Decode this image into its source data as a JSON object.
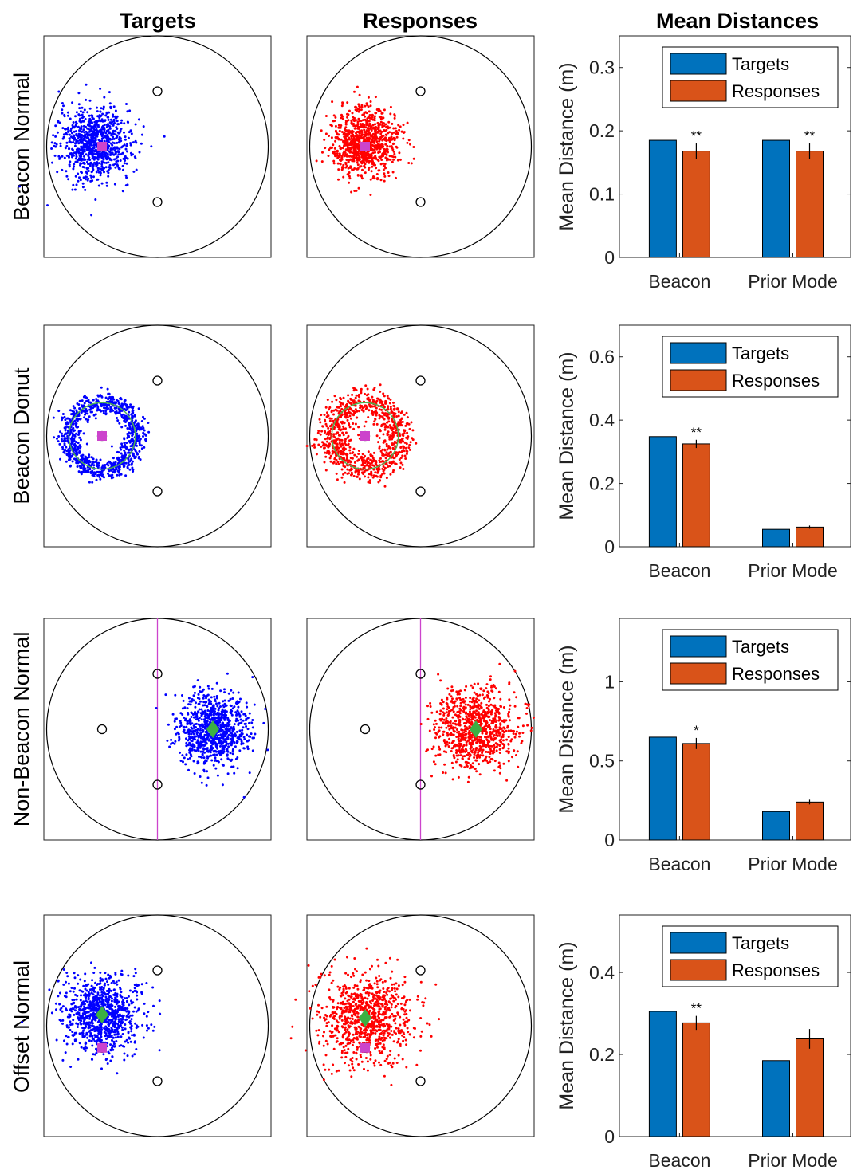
{
  "column_titles": [
    "Targets",
    "Responses",
    "Mean Distances"
  ],
  "colors": {
    "targets_points": "#0000ff",
    "responses_points": "#ff0000",
    "bar_targets": "#0072bd",
    "bar_responses": "#d95319",
    "beacon_marker": "#cc44cc",
    "prior_mode_marker": "#3cb043",
    "donut_ring": "#4caf50",
    "boundary_line": "#cc44cc"
  },
  "chart_data": [
    {
      "type": "scatter",
      "row": "Beacon Normal",
      "panel": "Targets",
      "distribution": "normal",
      "point_color": "blue",
      "cloud_center": [
        -0.56,
        0.03
      ],
      "cloud_sd": 0.16,
      "n_points": 900,
      "beacons": [
        [
          0.0,
          0.5
        ],
        [
          0.0,
          -0.5
        ],
        [
          -0.5,
          0.0
        ]
      ],
      "beacon_marker": [
        -0.5,
        0.0
      ],
      "prior_mode": null,
      "boundary_line": null
    },
    {
      "type": "scatter",
      "row": "Beacon Normal",
      "panel": "Responses",
      "distribution": "normal",
      "point_color": "red",
      "cloud_center": [
        -0.5,
        0.04
      ],
      "cloud_sd": 0.15,
      "n_points": 900,
      "beacons": [
        [
          0.0,
          0.5
        ],
        [
          0.0,
          -0.5
        ],
        [
          -0.5,
          0.0
        ]
      ],
      "beacon_marker": [
        -0.5,
        0.0
      ],
      "prior_mode": null,
      "boundary_line": null
    },
    {
      "type": "scatter",
      "row": "Beacon Donut",
      "panel": "Targets",
      "distribution": "donut",
      "point_color": "blue",
      "cloud_center": [
        -0.5,
        0.0
      ],
      "ring_radius": 0.3,
      "ring_sd": 0.05,
      "n_points": 900,
      "beacons": [
        [
          0.0,
          0.5
        ],
        [
          0.0,
          -0.5
        ],
        [
          -0.5,
          0.0
        ]
      ],
      "beacon_marker": [
        -0.5,
        0.0
      ],
      "prior_mode": null,
      "boundary_line": null
    },
    {
      "type": "scatter",
      "row": "Beacon Donut",
      "panel": "Responses",
      "distribution": "donut",
      "point_color": "red",
      "cloud_center": [
        -0.5,
        0.0
      ],
      "ring_radius": 0.3,
      "ring_sd": 0.07,
      "n_points": 900,
      "beacons": [
        [
          0.0,
          0.5
        ],
        [
          0.0,
          -0.5
        ],
        [
          -0.5,
          0.0
        ]
      ],
      "beacon_marker": [
        -0.5,
        0.0
      ],
      "prior_mode": null,
      "boundary_line": null
    },
    {
      "type": "scatter",
      "row": "Non-Beacon Normal",
      "panel": "Targets",
      "distribution": "normal",
      "point_color": "blue",
      "cloud_center": [
        0.5,
        0.0
      ],
      "cloud_sd": 0.16,
      "n_points": 900,
      "beacons": [
        [
          0.0,
          0.5
        ],
        [
          0.0,
          -0.5
        ],
        [
          -0.5,
          0.0
        ]
      ],
      "beacon_marker": null,
      "prior_mode": [
        0.5,
        0.0
      ],
      "boundary_line": 0.0
    },
    {
      "type": "scatter",
      "row": "Non-Beacon Normal",
      "panel": "Responses",
      "distribution": "normal",
      "point_color": "red",
      "cloud_center": [
        0.5,
        0.0
      ],
      "cloud_sd": 0.18,
      "n_points": 900,
      "beacons": [
        [
          0.0,
          0.5
        ],
        [
          0.0,
          -0.5
        ],
        [
          -0.5,
          0.0
        ]
      ],
      "beacon_marker": null,
      "prior_mode": [
        0.5,
        0.0
      ],
      "boundary_line": 0.0
    },
    {
      "type": "scatter",
      "row": "Offset Normal",
      "panel": "Targets",
      "distribution": "normal",
      "point_color": "blue",
      "cloud_center": [
        -0.5,
        0.1
      ],
      "cloud_sd": 0.17,
      "n_points": 900,
      "beacons": [
        [
          0.0,
          0.5
        ],
        [
          0.0,
          -0.5
        ],
        [
          -0.5,
          -0.2
        ]
      ],
      "beacon_marker": [
        -0.5,
        -0.2
      ],
      "prior_mode": [
        -0.5,
        0.1
      ],
      "boundary_line": null
    },
    {
      "type": "scatter",
      "row": "Offset Normal",
      "panel": "Responses",
      "distribution": "normal",
      "point_color": "red",
      "cloud_center": [
        -0.5,
        0.07
      ],
      "cloud_sd": 0.2,
      "n_points": 900,
      "beacons": [
        [
          0.0,
          0.5
        ],
        [
          0.0,
          -0.5
        ],
        [
          -0.5,
          -0.2
        ]
      ],
      "beacon_marker": [
        -0.5,
        -0.2
      ],
      "prior_mode": [
        -0.5,
        0.07
      ],
      "boundary_line": null
    },
    {
      "type": "bar",
      "row": "Beacon Normal",
      "categories": [
        "Beacon",
        "Prior Mode"
      ],
      "series": [
        {
          "name": "Targets",
          "values": [
            0.185,
            0.185
          ]
        },
        {
          "name": "Responses",
          "values": [
            0.168,
            0.168
          ],
          "errors": [
            0.012,
            0.012
          ]
        }
      ],
      "significance": [
        "**",
        "**"
      ],
      "ylabel": "Mean Distance (m)",
      "ylim": [
        0,
        0.35
      ],
      "yticks": [
        0,
        0.1,
        0.2,
        0.3
      ],
      "ytick_labels": [
        "0",
        "0.1",
        "0.2",
        "0.3"
      ],
      "legend": [
        "Targets",
        "Responses"
      ],
      "legend_position": "top-right"
    },
    {
      "type": "bar",
      "row": "Beacon Donut",
      "categories": [
        "Beacon",
        "Prior Mode"
      ],
      "series": [
        {
          "name": "Targets",
          "values": [
            0.348,
            0.055
          ]
        },
        {
          "name": "Responses",
          "values": [
            0.325,
            0.062
          ],
          "errors": [
            0.013,
            0.005
          ]
        }
      ],
      "significance": [
        "**",
        ""
      ],
      "ylabel": "Mean Distance (m)",
      "ylim": [
        0,
        0.7
      ],
      "yticks": [
        0,
        0.2,
        0.4,
        0.6
      ],
      "ytick_labels": [
        "0",
        "0.2",
        "0.4",
        "0.6"
      ],
      "legend": [
        "Targets",
        "Responses"
      ],
      "legend_position": "top-right"
    },
    {
      "type": "bar",
      "row": "Non-Beacon Normal",
      "categories": [
        "Beacon",
        "Prior Mode"
      ],
      "series": [
        {
          "name": "Targets",
          "values": [
            0.65,
            0.18
          ]
        },
        {
          "name": "Responses",
          "values": [
            0.61,
            0.24
          ],
          "errors": [
            0.035,
            0.015
          ]
        }
      ],
      "significance": [
        "*",
        ""
      ],
      "ylabel": "Mean Distance (m)",
      "ylim": [
        0,
        1.4
      ],
      "yticks": [
        0,
        0.5,
        1
      ],
      "ytick_labels": [
        "0",
        "0.5",
        "1"
      ],
      "legend": [
        "Targets",
        "Responses"
      ],
      "legend_position": "top-right"
    },
    {
      "type": "bar",
      "row": "Offset Normal",
      "categories": [
        "Beacon",
        "Prior Mode"
      ],
      "series": [
        {
          "name": "Targets",
          "values": [
            0.305,
            0.185
          ]
        },
        {
          "name": "Responses",
          "values": [
            0.277,
            0.238
          ],
          "errors": [
            0.017,
            0.024
          ]
        }
      ],
      "significance": [
        "**",
        ""
      ],
      "ylabel": "Mean Distance (m)",
      "ylim": [
        0,
        0.54
      ],
      "yticks": [
        0,
        0.2,
        0.4
      ],
      "ytick_labels": [
        "0",
        "0.2",
        "0.4"
      ],
      "legend": [
        "Targets",
        "Responses"
      ],
      "legend_position": "top-right"
    }
  ]
}
